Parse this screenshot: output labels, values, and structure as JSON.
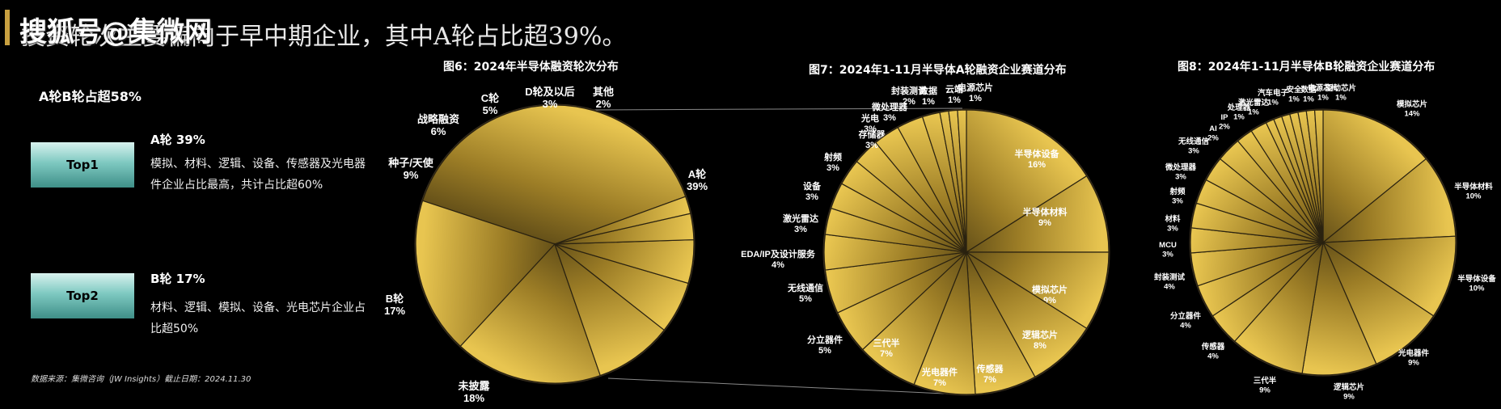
{
  "headline": "投资轮次主要偏向于早中期企业，其中A轮占比超39%。",
  "watermark": "搜狐号@集微网",
  "left_panel": {
    "title": "A轮B轮占超58%",
    "top1": {
      "button": "Top1",
      "label": "A轮  39%",
      "desc": "模拟、材料、逻辑、设备、传感器及光电器件企业占比最高，共计占比超60%"
    },
    "top2": {
      "button": "Top2",
      "label": "B轮   17%",
      "desc": "材料、逻辑、模拟、设备、光电芯片企业占比超50%"
    },
    "source": "数据来源：集微咨询（JW Insights）截止日期：2024.11.30"
  },
  "chart_data": [
    {
      "type": "pie",
      "title": "图6：2024年半导体融资轮次分布",
      "categories": [
        "A轮",
        "未披露",
        "B轮",
        "种子/天使",
        "战略融资",
        "C轮",
        "D轮及以后",
        "其他"
      ],
      "values": [
        39,
        18,
        17,
        9,
        6,
        5,
        3,
        2
      ],
      "labels": [
        "39%",
        "18%",
        "17%",
        "9%",
        "6%",
        "5%",
        "3%",
        "2%"
      ]
    },
    {
      "type": "pie",
      "title": "图7：2024年1-11月半导体A轮融资企业赛道分布",
      "categories": [
        "半导体设备",
        "半导体材料",
        "模拟芯片",
        "逻辑芯片",
        "传感器",
        "光电器件",
        "三代半",
        "分立器件",
        "无线通信",
        "EDA/IP及设计服务",
        "激光雷达",
        "设备",
        "射频",
        "存储器",
        "光电",
        "微处理器",
        "封装测试",
        "数据",
        "云端",
        "电源芯片"
      ],
      "values": [
        16,
        9,
        9,
        8,
        7,
        7,
        7,
        5,
        5,
        4,
        3,
        3,
        3,
        3,
        3,
        3,
        2,
        1,
        1,
        1
      ],
      "labels": [
        "16%",
        "9%",
        "9%",
        "8%",
        "7%",
        "7%",
        "7%",
        "5%",
        "5%",
        "4%",
        "3%",
        "3%",
        "3%",
        "3%",
        "3%",
        "3%",
        "2%",
        "1%",
        "1%",
        "1%"
      ]
    },
    {
      "type": "pie",
      "title": "图8：2024年1-11月半导体B轮融资企业赛道分布",
      "categories": [
        "模拟芯片",
        "半导体材料",
        "半导体设备",
        "光电器件",
        "逻辑芯片",
        "三代半",
        "传感器",
        "分立器件",
        "封装测试",
        "MCU",
        "材料",
        "射频",
        "微处理器",
        "无线通信",
        "AI",
        "IP",
        "处理器",
        "激光雷达",
        "汽车电子",
        "安全",
        "数据",
        "电源芯片",
        "驱动芯片"
      ],
      "values": [
        14,
        10,
        10,
        9,
        9,
        9,
        4,
        4,
        4,
        3,
        3,
        3,
        3,
        3,
        2,
        2,
        1,
        1,
        1,
        1,
        1,
        1,
        1
      ],
      "labels": [
        "14%",
        "10%",
        "10%",
        "9%",
        "9%",
        "9%",
        "4%",
        "4%",
        "4%",
        "3%",
        "3%",
        "3%",
        "3%",
        "3%",
        "2%",
        "2%",
        "1%",
        "1%",
        "1%",
        "1%",
        "1%",
        "1%",
        "1%"
      ]
    }
  ]
}
